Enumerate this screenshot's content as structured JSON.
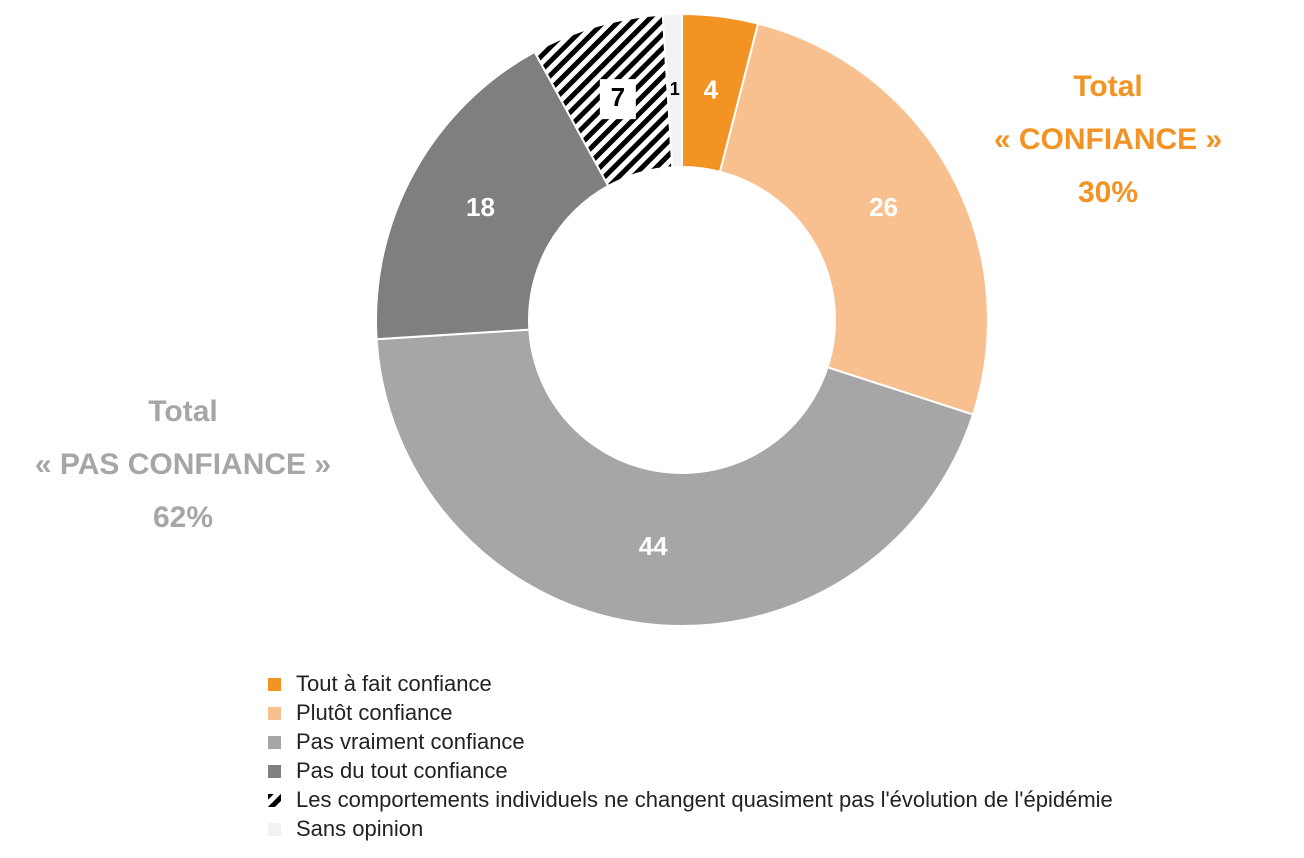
{
  "chart_data": {
    "type": "donut",
    "categories": [
      "Tout à fait confiance",
      "Plutôt confiance",
      "Pas vraiment confiance",
      "Pas du tout confiance",
      "Les comportements individuels ne changent quasiment pas l'évolution de l'épidémie",
      "Sans opinion"
    ],
    "values": [
      4,
      26,
      44,
      18,
      7,
      1
    ],
    "colors": [
      "#f39323",
      "#f9c08f",
      "#a6a6a6",
      "#7f7f7f",
      "#000000",
      "#f2f2f2"
    ],
    "hatched": [
      false,
      false,
      false,
      false,
      true,
      false
    ],
    "label_colors": [
      "#ffffff",
      "#ffffff",
      "#ffffff",
      "#ffffff",
      "#000000",
      "#000000"
    ],
    "annotations": [
      {
        "lines": [
          "Total",
          "« CONFIANCE »",
          "30%"
        ],
        "color": "#f39323"
      },
      {
        "lines": [
          "Total",
          "« PAS CONFIANCE »",
          "62%"
        ],
        "color": "#a6a6a6"
      }
    ]
  }
}
